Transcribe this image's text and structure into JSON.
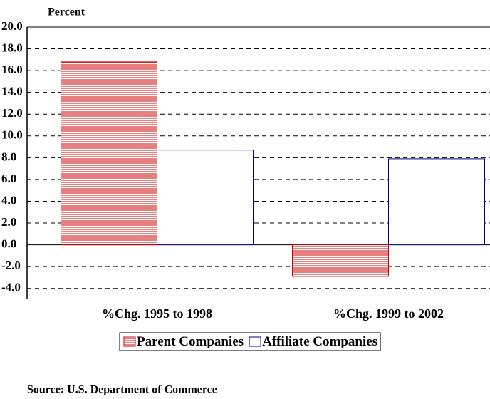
{
  "chart_data": {
    "type": "bar",
    "y_label": "Percent",
    "source": "Source: U.S. Department of Commerce",
    "categories": [
      "%Chg. 1995 to 1998",
      "%Chg. 1999 to 2002"
    ],
    "series": [
      {
        "name": "Parent Companies",
        "color": "#cc0000",
        "hatch": "horizontal",
        "values": [
          16.8,
          -2.9
        ]
      },
      {
        "name": "Affiliate Companies",
        "color": "#000080",
        "values": [
          8.7,
          7.9
        ]
      }
    ],
    "ylim": [
      -5,
      20
    ],
    "yticks": [
      {
        "value": 20,
        "label": "20.0"
      },
      {
        "value": 18,
        "label": "18.0"
      },
      {
        "value": 16,
        "label": "16.0"
      },
      {
        "value": 14,
        "label": "14.0"
      },
      {
        "value": 12,
        "label": "12.0"
      },
      {
        "value": 10,
        "label": "10.0"
      },
      {
        "value": 8,
        "label": "8.0"
      },
      {
        "value": 6,
        "label": "6.0"
      },
      {
        "value": 4,
        "label": "4.0"
      },
      {
        "value": 2,
        "label": "2.0"
      },
      {
        "value": 0,
        "label": "0.0"
      },
      {
        "value": -2,
        "label": "-2.0"
      },
      {
        "value": -4,
        "label": "-4.0"
      }
    ],
    "grid": true
  }
}
